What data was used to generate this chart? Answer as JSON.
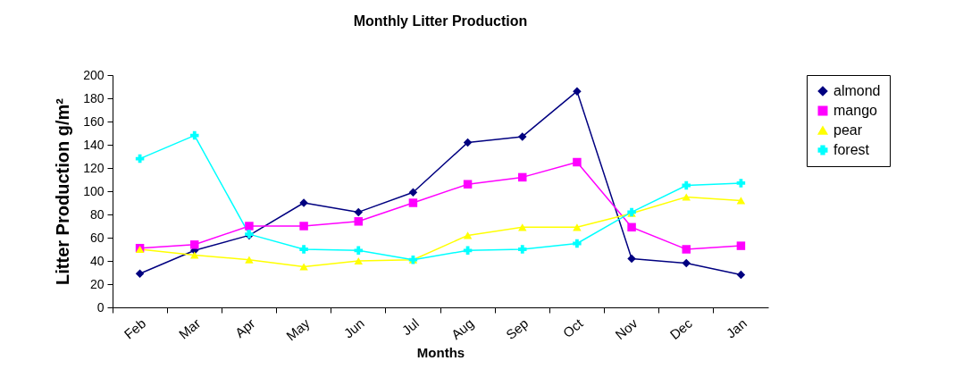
{
  "chart_data": {
    "type": "line",
    "title": "Monthly Litter Production",
    "xlabel": "Months",
    "ylabel": "Litter Production g/m²",
    "categories": [
      "Feb",
      "Mar",
      "Apr",
      "May",
      "Jun",
      "Jul",
      "Aug",
      "Sep",
      "Oct",
      "Nov",
      "Dec",
      "Jan"
    ],
    "series": [
      {
        "name": "almond",
        "color": "#000080",
        "marker": "diamond",
        "values": [
          29,
          49,
          62,
          90,
          82,
          99,
          142,
          147,
          186,
          42,
          38,
          28
        ]
      },
      {
        "name": "mango",
        "color": "#ff00ff",
        "marker": "square",
        "values": [
          51,
          54,
          70,
          70,
          74,
          90,
          106,
          112,
          125,
          69,
          50,
          53
        ]
      },
      {
        "name": "pear",
        "color": "#ffff00",
        "marker": "triangle",
        "values": [
          50,
          45,
          41,
          35,
          40,
          41,
          62,
          69,
          69,
          81,
          95,
          92
        ]
      },
      {
        "name": "forest",
        "color": "#00ffff",
        "marker": "cross",
        "values": [
          128,
          148,
          63,
          50,
          49,
          41,
          49,
          50,
          55,
          82,
          105,
          107
        ]
      }
    ],
    "ylim": [
      0,
      200
    ],
    "yticks": [
      0,
      20,
      40,
      60,
      80,
      100,
      120,
      140,
      160,
      180,
      200
    ],
    "grid": false,
    "legend": "right"
  }
}
